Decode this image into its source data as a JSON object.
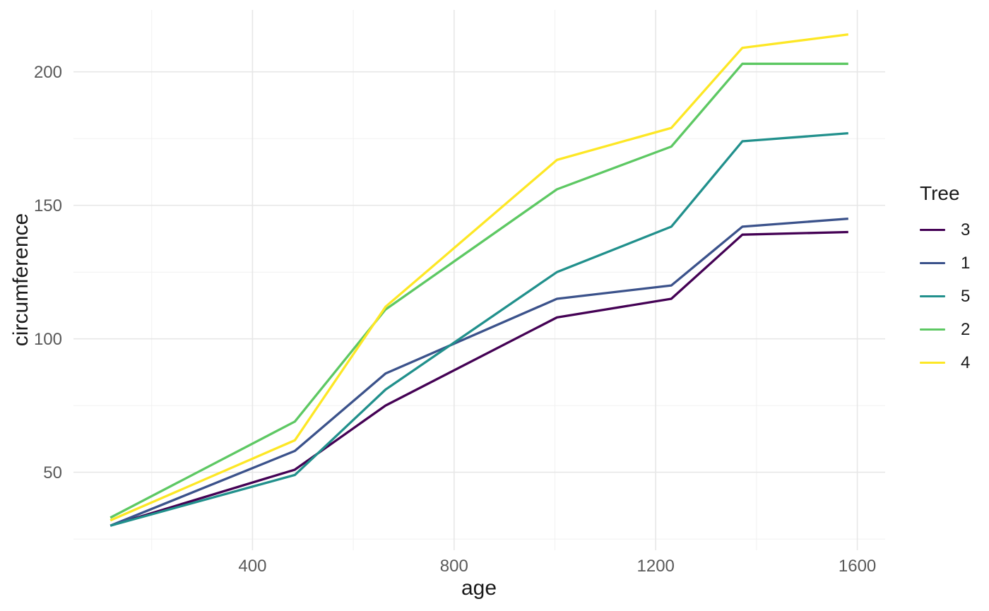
{
  "chart_data": {
    "type": "line",
    "title": "",
    "xlabel": "age",
    "ylabel": "circumference",
    "legend_title": "Tree",
    "legend_position": "right",
    "background": "#FFFFFF",
    "grid": true,
    "x": [
      118,
      484,
      664,
      1004,
      1231,
      1372,
      1582
    ],
    "series": [
      {
        "name": "3",
        "color": "#440154",
        "values": [
          30,
          51,
          75,
          108,
          115,
          139,
          140
        ]
      },
      {
        "name": "1",
        "color": "#3B528B",
        "values": [
          30,
          58,
          87,
          115,
          120,
          142,
          145
        ]
      },
      {
        "name": "5",
        "color": "#21908C",
        "values": [
          30,
          49,
          81,
          125,
          142,
          174,
          177
        ]
      },
      {
        "name": "2",
        "color": "#5DC863",
        "values": [
          33,
          69,
          111,
          156,
          172,
          203,
          203
        ]
      },
      {
        "name": "4",
        "color": "#FDE725",
        "values": [
          32,
          62,
          112,
          167,
          179,
          209,
          214
        ]
      }
    ],
    "xlim": [
      44.8,
      1655.2
    ],
    "ylim": [
      20.8,
      223.2
    ],
    "x_major_ticks": [
      400,
      800,
      1200,
      1600
    ],
    "x_minor_ticks": [
      200,
      600,
      1000,
      1400
    ],
    "y_major_ticks": [
      50,
      100,
      150,
      200
    ],
    "y_minor_ticks": [
      25,
      75,
      125,
      175
    ],
    "colors": {
      "grid_major": "#E7E7E7",
      "grid_minor": "#F1F1F1",
      "tick_text": "#595959",
      "axis_title_text": "#1a1a1a"
    }
  }
}
